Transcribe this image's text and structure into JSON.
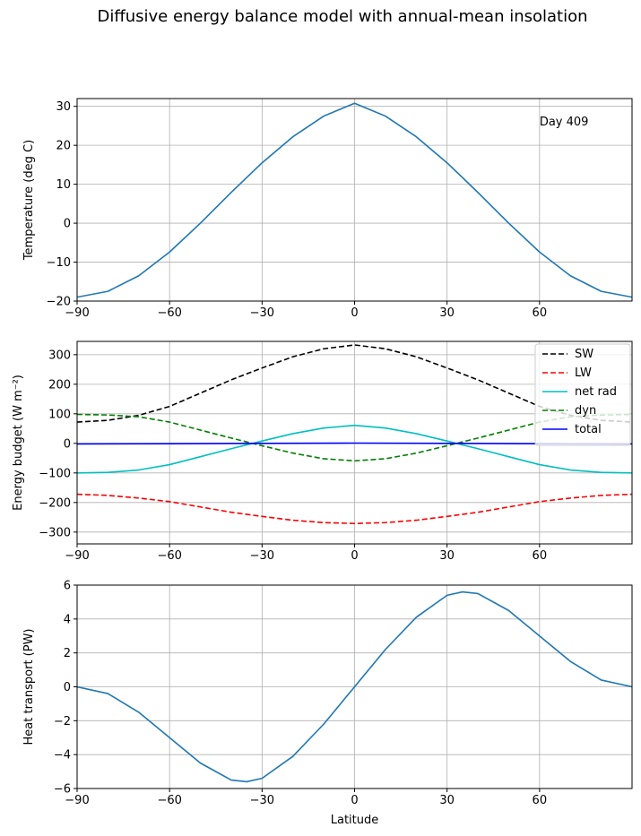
{
  "chart_data": {
    "title": "Diffusive energy balance model with annual-mean insolation",
    "panels": [
      {
        "type": "line",
        "ylabel": "Temperature (deg C)",
        "xlabel": "",
        "xlim": [
          -90,
          90
        ],
        "ylim": [
          -20,
          32
        ],
        "xticks": [
          -90,
          -60,
          -30,
          0,
          30,
          60
        ],
        "yticks": [
          -20,
          -10,
          0,
          10,
          20,
          30
        ],
        "grid": true,
        "annotation": "Day 409",
        "series": [
          {
            "color": "#1f77b4",
            "dash": "solid",
            "x": [
              -90,
              -80,
              -70,
              -60,
              -50,
              -40,
              -30,
              -20,
              -10,
              0,
              10,
              20,
              30,
              40,
              50,
              60,
              70,
              80,
              90
            ],
            "y": [
              -19,
              -17.5,
              -13.5,
              -7.4,
              0,
              7.9,
              15.5,
              22.2,
              27.5,
              30.8,
              27.5,
              22.2,
              15.5,
              7.9,
              0,
              -7.4,
              -13.5,
              -17.5,
              -19
            ]
          }
        ]
      },
      {
        "type": "line",
        "ylabel": "Energy budget (W m⁻²)",
        "xlabel": "",
        "xlim": [
          -90,
          90
        ],
        "ylim": [
          -340,
          345
        ],
        "xticks": [
          -90,
          -60,
          -30,
          0,
          30,
          60
        ],
        "yticks": [
          -300,
          -200,
          -100,
          0,
          100,
          200,
          300
        ],
        "grid": true,
        "legend": "top-right",
        "series": [
          {
            "name": "SW",
            "color": "#000000",
            "dash": "dashed",
            "x": [
              -90,
              -80,
              -70,
              -60,
              -50,
              -40,
              -30,
              -20,
              -10,
              0,
              10,
              20,
              30,
              40,
              50,
              60,
              70,
              80,
              90
            ],
            "y": [
              72,
              78,
              95,
              125,
              170,
              215,
              255,
              293,
              320,
              333,
              320,
              293,
              255,
              215,
              170,
              125,
              95,
              78,
              72
            ]
          },
          {
            "name": "LW",
            "color": "#ff0000",
            "dash": "dashed",
            "x": [
              -90,
              -80,
              -70,
              -60,
              -50,
              -40,
              -30,
              -20,
              -10,
              0,
              10,
              20,
              30,
              40,
              50,
              60,
              70,
              80,
              90
            ],
            "y": [
              -172,
              -176,
              -185,
              -197,
              -215,
              -233,
              -247,
              -260,
              -268,
              -271,
              -268,
              -260,
              -247,
              -233,
              -215,
              -197,
              -185,
              -176,
              -172
            ]
          },
          {
            "name": "net rad",
            "color": "#00bfbf",
            "dash": "solid",
            "x": [
              -90,
              -80,
              -70,
              -60,
              -50,
              -40,
              -30,
              -20,
              -10,
              0,
              10,
              20,
              30,
              40,
              50,
              60,
              70,
              80,
              90
            ],
            "y": [
              -100,
              -98,
              -90,
              -72,
              -45,
              -18,
              8,
              33,
              52,
              61,
              52,
              33,
              8,
              -18,
              -45,
              -72,
              -90,
              -98,
              -100
            ]
          },
          {
            "name": "dyn",
            "color": "#008000",
            "dash": "dashed",
            "x": [
              -90,
              -80,
              -70,
              -60,
              -50,
              -40,
              -30,
              -20,
              -10,
              0,
              10,
              20,
              30,
              40,
              50,
              60,
              70,
              80,
              90
            ],
            "y": [
              98,
              96,
              90,
              72,
              45,
              18,
              -8,
              -33,
              -52,
              -59,
              -52,
              -33,
              -8,
              18,
              45,
              72,
              90,
              96,
              98
            ]
          },
          {
            "name": "total",
            "color": "#0000ff",
            "dash": "solid",
            "x": [
              -90,
              -60,
              -30,
              0,
              30,
              60,
              90
            ],
            "y": [
              -2,
              -1,
              0,
              1,
              0,
              -1,
              -2
            ]
          }
        ]
      },
      {
        "type": "line",
        "ylabel": "Heat transport (PW)",
        "xlabel": "Latitude",
        "xlim": [
          -90,
          90
        ],
        "ylim": [
          -6,
          6
        ],
        "xticks": [
          -90,
          -60,
          -30,
          0,
          30,
          60
        ],
        "yticks": [
          -6,
          -4,
          -2,
          0,
          2,
          4,
          6
        ],
        "grid": true,
        "series": [
          {
            "color": "#1f77b4",
            "dash": "solid",
            "x": [
              -90,
              -80,
              -70,
              -60,
              -50,
              -40,
              -35,
              -30,
              -20,
              -10,
              0,
              10,
              20,
              30,
              35,
              40,
              50,
              60,
              70,
              80,
              90
            ],
            "y": [
              0,
              -0.4,
              -1.5,
              -3.0,
              -4.5,
              -5.5,
              -5.6,
              -5.4,
              -4.1,
              -2.2,
              0,
              2.2,
              4.1,
              5.4,
              5.6,
              5.5,
              4.5,
              3.0,
              1.5,
              0.4,
              0
            ]
          }
        ]
      }
    ]
  }
}
